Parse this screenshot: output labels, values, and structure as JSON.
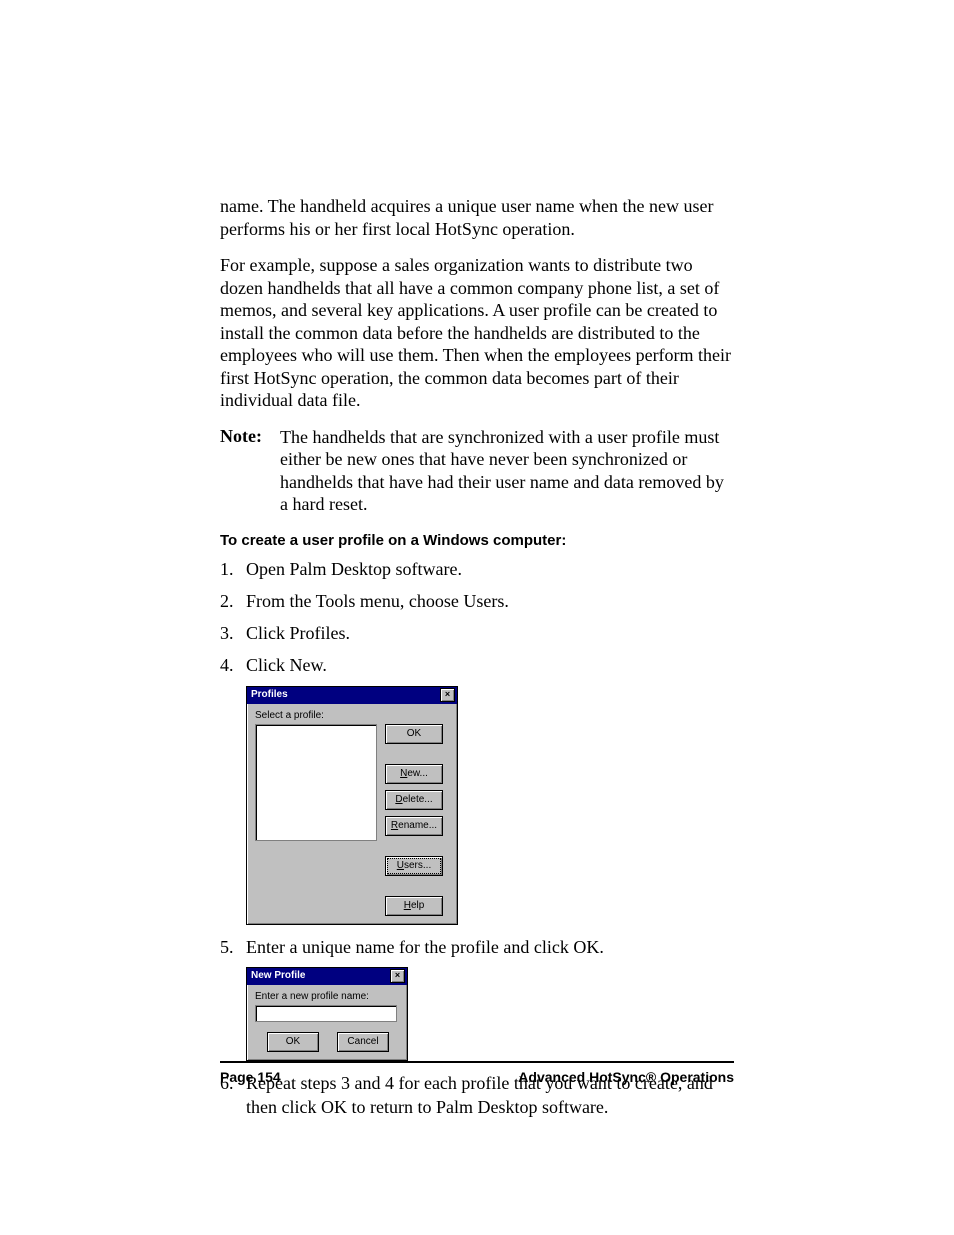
{
  "paragraphs": {
    "p1": "name. The handheld acquires a unique user name when the new user performs his or her first local HotSync operation.",
    "p2": "For example, suppose a sales organization wants to distribute two dozen handhelds that all have a common company phone list, a set of memos, and several key applications. A user profile can be created to install the common data before the handhelds are distributed to the employees who will use them. Then when the employees perform their first HotSync operation, the common data becomes part of their individual data file."
  },
  "note": {
    "label": "Note:",
    "text": "The handhelds that are synchronized with a user profile must either be new ones that have never been synchronized or handhelds that have had their user name and data removed by a hard reset."
  },
  "subhead": "To create a user profile on a Windows computer:",
  "steps": {
    "s1": "Open Palm Desktop software.",
    "s2": "From the Tools menu, choose Users.",
    "s3": "Click Profiles.",
    "s4": "Click New.",
    "s5": "Enter a unique name for the profile and click OK.",
    "s6": "Repeat steps 3 and 4 for each profile that you want to create, and then click OK to return to Palm Desktop software."
  },
  "dialog_profiles": {
    "title": "Profiles",
    "close_glyph": "×",
    "select_label": "Select a profile:",
    "buttons": {
      "ok": "OK",
      "new_prefix": "N",
      "new_rest": "ew...",
      "delete_prefix": "D",
      "delete_rest": "elete...",
      "rename_prefix": "R",
      "rename_rest": "ename...",
      "users_prefix": "U",
      "users_rest": "sers...",
      "help_prefix": "H",
      "help_rest": "elp"
    }
  },
  "dialog_newprofile": {
    "title": "New Profile",
    "close_glyph": "×",
    "label": "Enter a new profile name:",
    "ok": "OK",
    "cancel": "Cancel"
  },
  "footer": {
    "page": "Page 154",
    "section": "Advanced HotSync® Operations"
  }
}
